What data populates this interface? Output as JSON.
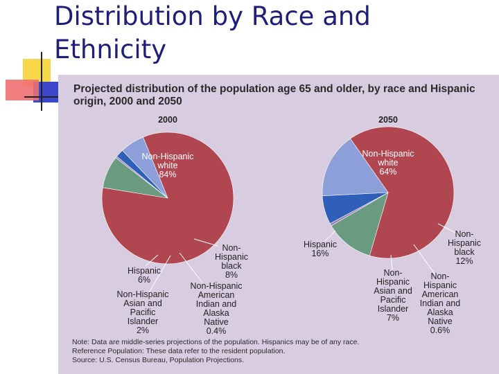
{
  "slide": {
    "title": "Distribution by Race and Ethnicity"
  },
  "colors": {
    "white": "#b04650",
    "black": "#6a9a80",
    "aian": "#9b7bbf",
    "asian": "#2f5fb8",
    "hispanic": "#8c9fd8",
    "panel": "#d8cce0"
  },
  "chart_data": {
    "type": "pie",
    "title": "Projected distribution of the population age 65 and older, by race and Hispanic origin, 2000 and 2050",
    "charts": [
      {
        "year": "2000",
        "slices": [
          {
            "key": "white",
            "lines": [
              "Non-Hispanic",
              "white"
            ],
            "value_label": "84%",
            "value": 84.0
          },
          {
            "key": "black",
            "lines": [
              "Non-",
              "Hispanic",
              "black"
            ],
            "value_label": "8%",
            "value": 8.0
          },
          {
            "key": "aian",
            "lines": [
              "Non-Hispanic",
              "American",
              "Indian and",
              "Alaska",
              "Native"
            ],
            "value_label": "0.4%",
            "value": 0.4
          },
          {
            "key": "asian",
            "lines": [
              "Non-Hispanic",
              "Asian and",
              "Pacific",
              "Islander"
            ],
            "value_label": "2%",
            "value": 2.0
          },
          {
            "key": "hispanic",
            "lines": [
              "Hispanic"
            ],
            "value_label": "6%",
            "value": 6.0
          }
        ]
      },
      {
        "year": "2050",
        "slices": [
          {
            "key": "white",
            "lines": [
              "Non-Hispanic",
              "white"
            ],
            "value_label": "64%",
            "value": 64.0
          },
          {
            "key": "black",
            "lines": [
              "Non-",
              "Hispanic",
              "black"
            ],
            "value_label": "12%",
            "value": 12.0
          },
          {
            "key": "aian",
            "lines": [
              "Non-",
              "Hispanic",
              "American",
              "Indian and",
              "Alaska",
              "Native"
            ],
            "value_label": "0.6%",
            "value": 0.6
          },
          {
            "key": "asian",
            "lines": [
              "Non-",
              "Hispanic",
              "Asian and",
              "Pacific",
              "Islander"
            ],
            "value_label": "7%",
            "value": 7.0
          },
          {
            "key": "hispanic",
            "lines": [
              "Hispanic"
            ],
            "value_label": "16%",
            "value": 16.0
          }
        ]
      }
    ],
    "notes": [
      "Note: Data are middle-series projections of the population. Hispanics may be of any race.",
      "Reference Population:  These data refer to the resident population.",
      "Source: U.S. Census Bureau, Population Projections."
    ]
  }
}
